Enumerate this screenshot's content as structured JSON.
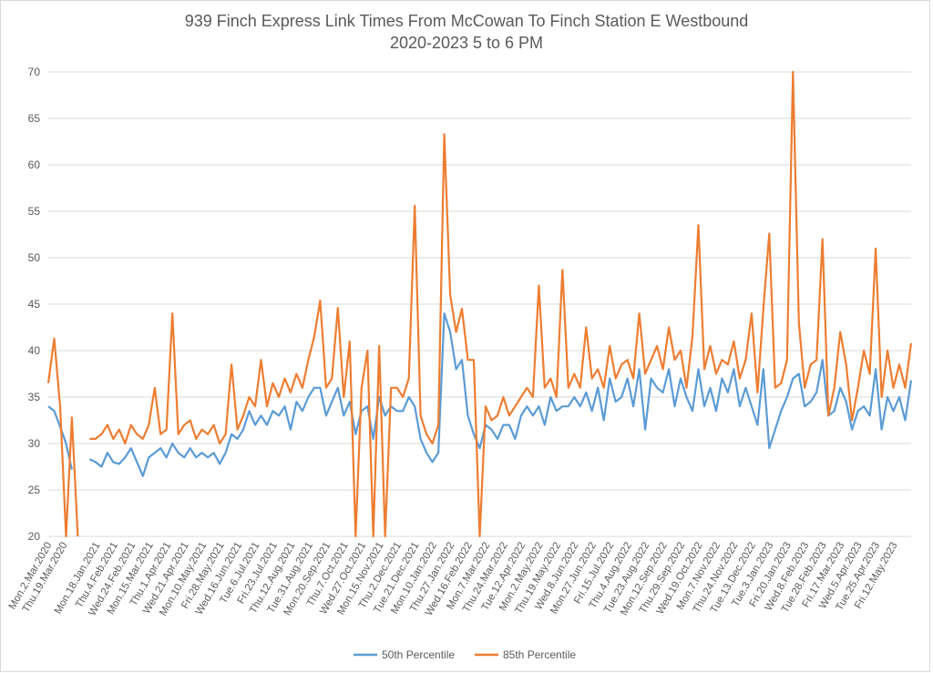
{
  "chart_data": {
    "type": "line",
    "title": [
      "939 Finch Express Link Times From McCowan To Finch Station E Westbound",
      "2020-2023 5 to 6 PM"
    ],
    "xlabel": "",
    "ylabel": "",
    "ylim": [
      20,
      70
    ],
    "yticks": [
      20,
      25,
      30,
      35,
      40,
      45,
      50,
      55,
      60,
      65,
      70
    ],
    "grid": true,
    "legend_position": "bottom",
    "x_tick_labels": [
      "Mon.2.Mar.2020",
      "Thu.19.Mar.2020",
      "Mon.18.Jan.2021",
      "Thu.4.Feb.2021",
      "Wed.24.Feb.2021",
      "Mon.15.Mar.2021",
      "Thu.1.Apr.2021",
      "Wed.21.Apr.2021",
      "Mon.10.May.2021",
      "Fri.28.May.2021",
      "Wed.16.Jun.2021",
      "Tue.6.Jul.2021",
      "Fri.23.Jul.2021",
      "Thu.12.Aug.2021",
      "Tue.31.Aug.2021",
      "Mon.20.Sep.2021",
      "Thu.7.Oct.2021",
      "Wed.27.Oct.2021",
      "Mon.15.Nov.2021",
      "Thu.2.Dec.2021",
      "Tue.21.Dec.2021",
      "Mon.10.Jan.2022",
      "Thu.27.Jan.2022",
      "Wed.16.Feb.2022",
      "Mon.7.Mar.2022",
      "Thu.24.Mar.2022",
      "Tue.12.Apr.2022",
      "Mon.2.May.2022",
      "Thu.19.May.2022",
      "Wed.8.Jun.2022",
      "Mon.27.Jun.2022",
      "Fri.15.Jul.2022",
      "Thu.4.Aug.2022",
      "Tue.23.Aug.2022",
      "Mon.12.Sep.2022",
      "Thu.29.Sep.2022",
      "Wed.19.Oct.2022",
      "Mon.7.Nov.2022",
      "Thu.24.Nov.2022",
      "Tue.13.Dec.2022",
      "Tue.3.Jan.2023",
      "Fri.20.Jan.2023",
      "Wed.8.Feb.2023",
      "Tue.28.Feb.2023",
      "Fri.17.Mar.2023",
      "Wed.5.Apr.2023",
      "Tue.25.Apr.2023",
      "Fri.12.May.2023"
    ],
    "series": [
      {
        "name": "50th Percentile",
        "color": "#5B9BD5",
        "values": [
          34,
          33.5,
          31.8,
          30,
          27.2,
          null,
          null,
          28.3,
          28,
          27.5,
          29,
          28,
          27.8,
          28.5,
          29.5,
          28,
          26.5,
          28.5,
          29,
          29.5,
          28.5,
          30,
          29,
          28.5,
          29.5,
          28.5,
          29,
          28.5,
          29,
          27.8,
          29,
          31,
          30.5,
          31.5,
          33.5,
          32,
          33,
          32,
          33.5,
          33,
          34,
          31.5,
          34.5,
          33.5,
          35,
          36,
          36,
          33,
          34.5,
          36,
          33,
          34.5,
          31,
          33.5,
          34,
          30.5,
          35,
          33,
          34,
          33.5,
          33.5,
          35,
          34,
          30.5,
          29,
          28,
          29,
          44,
          42,
          38,
          39,
          33,
          31,
          29.5,
          32,
          31.5,
          30.5,
          32,
          32,
          30.5,
          33,
          34,
          33,
          34,
          32,
          35,
          33.5,
          34,
          34,
          35,
          34,
          35.5,
          33.5,
          36,
          32.5,
          37,
          34.5,
          35,
          37,
          34,
          38,
          31.5,
          37,
          36,
          35.5,
          38,
          34,
          37,
          35,
          33.5,
          38,
          34,
          36,
          33.5,
          37,
          35.5,
          38,
          34,
          36,
          34,
          32,
          38,
          29.5,
          31.5,
          33.5,
          35,
          37,
          37.5,
          34,
          34.5,
          35.5,
          39,
          33,
          33.5,
          36,
          34.5,
          31.5,
          33.5,
          34,
          33,
          38,
          31.5,
          35,
          33.5,
          35,
          32.5,
          36.8
        ]
      },
      {
        "name": "85th Percentile",
        "color": "#ED7D31",
        "values": [
          36.5,
          41.3,
          34,
          20,
          32.8,
          20,
          null,
          30.5,
          30.5,
          31,
          32,
          30.5,
          31.5,
          30,
          32,
          31,
          30.5,
          32,
          36,
          31,
          31.5,
          44,
          31,
          32,
          32.5,
          30.5,
          31.5,
          31,
          32,
          30,
          31,
          38.5,
          31.5,
          33,
          35,
          34,
          39,
          34,
          36.5,
          35,
          37,
          35.5,
          37.5,
          36,
          39,
          41.5,
          45.4,
          36,
          37,
          44.6,
          35,
          41,
          20,
          36,
          40,
          20,
          40.5,
          20,
          36,
          36,
          35,
          37,
          55.6,
          33,
          31,
          30,
          32,
          63.3,
          46,
          42,
          44.5,
          39,
          39,
          20,
          34,
          32.5,
          33,
          35,
          33,
          34,
          35,
          36,
          35,
          47,
          36,
          37,
          35,
          48.7,
          36,
          37.5,
          36,
          42.5,
          37,
          38,
          36,
          40.5,
          37,
          38.5,
          39,
          37,
          44,
          37.5,
          39,
          40.5,
          38,
          42.5,
          39,
          40,
          36,
          41.5,
          53.5,
          38,
          40.5,
          37.5,
          39,
          38.5,
          41,
          37,
          39,
          44,
          35.5,
          44.5,
          52.6,
          36,
          36.5,
          39,
          70,
          43,
          36,
          38.5,
          39,
          52,
          33,
          36,
          42,
          38.5,
          32.5,
          36,
          40,
          37.5,
          51,
          35,
          40,
          36,
          38.5,
          36,
          40.8
        ]
      }
    ]
  }
}
